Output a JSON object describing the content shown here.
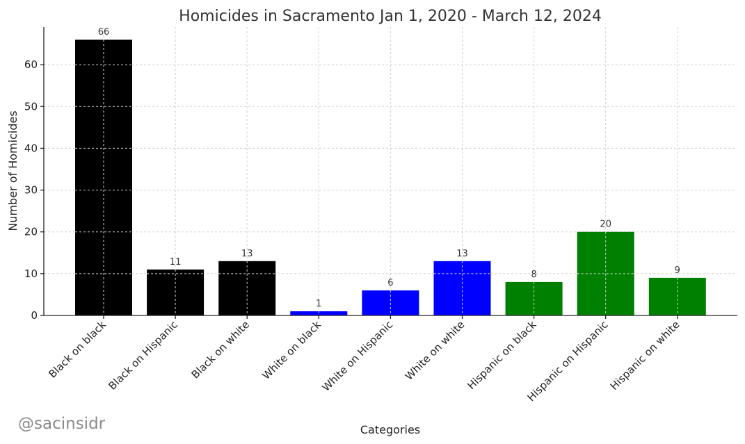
{
  "chart_data": {
    "type": "bar",
    "title": "Homicides in Sacramento Jan 1, 2020 - March 12, 2024",
    "xlabel": "Categories",
    "ylabel": "Number of Homicides",
    "categories": [
      "Black on black",
      "Black on Hispanic",
      "Black on white",
      "White on black",
      "White on Hispanic",
      "White on white",
      "Hispanic on black",
      "Hispanic on Hispanic",
      "Hispanic on white"
    ],
    "values": [
      66,
      11,
      13,
      1,
      6,
      13,
      8,
      20,
      9
    ],
    "colors": [
      "#000000",
      "#000000",
      "#000000",
      "#0000ff",
      "#0000ff",
      "#0000ff",
      "#008000",
      "#008000",
      "#008000"
    ],
    "ylim": [
      0,
      69
    ],
    "yticks": [
      0,
      10,
      20,
      30,
      40,
      50,
      60
    ],
    "grid": true
  },
  "watermark": "@sacinsidr"
}
